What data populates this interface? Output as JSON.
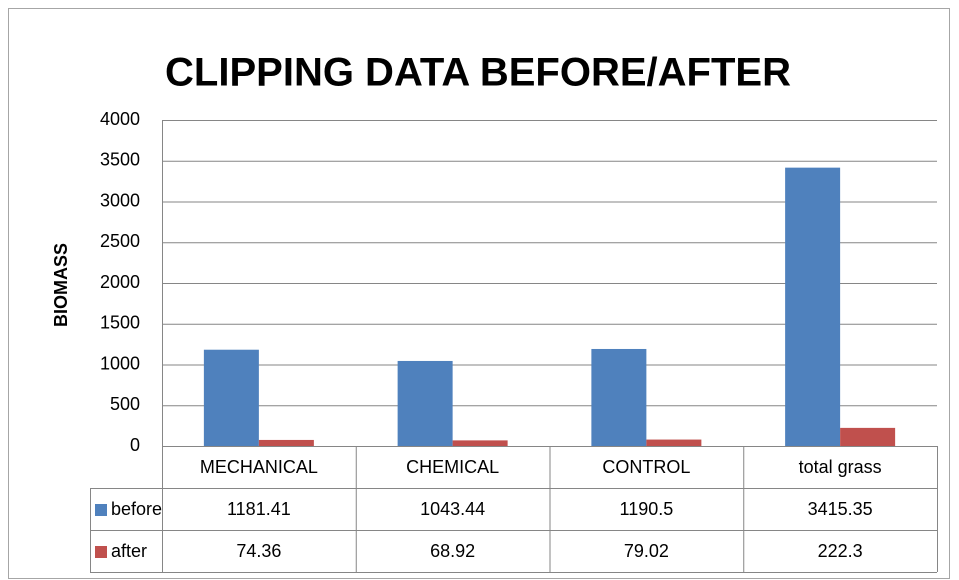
{
  "chart_data": {
    "type": "bar",
    "title": "CLIPPING DATA BEFORE/AFTER",
    "y_label": "BIOMASS",
    "categories": [
      "MECHANICAL",
      "CHEMICAL",
      "CONTROL",
      "total grass"
    ],
    "series": [
      {
        "name": "before",
        "color": "#4f81bd",
        "values": [
          1181.41,
          1043.44,
          1190.5,
          3415.35
        ]
      },
      {
        "name": "after",
        "color": "#c0504d",
        "values": [
          74.36,
          68.92,
          79.02,
          222.3
        ]
      }
    ],
    "ylim": [
      0,
      4000
    ],
    "yticks": [
      0,
      500,
      1000,
      1500,
      2000,
      2500,
      3000,
      3500,
      4000
    ],
    "grid": true,
    "data_table": true
  }
}
